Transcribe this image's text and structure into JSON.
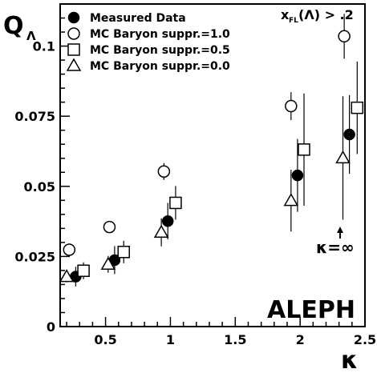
{
  "chart_data": {
    "type": "scatter",
    "title": "",
    "xlabel": "κ",
    "ylabel": "Q",
    "ylabel_sub": "Λ",
    "xlim": [
      0.15,
      2.5
    ],
    "ylim": [
      0,
      0.115
    ],
    "x_ticks": [
      0.5,
      1,
      1.5,
      2,
      2.5
    ],
    "x_tick_labels": [
      "0.5",
      "1",
      "1.5",
      "2",
      "2.5"
    ],
    "y_ticks": [
      0,
      0.025,
      0.05,
      0.075,
      0.1
    ],
    "y_tick_labels": [
      "0",
      "0.025",
      "0.05",
      "0.075",
      "0.1"
    ],
    "cut_label": "x",
    "cut_sub": "FL",
    "cut_rest": "(Λ) > .2",
    "annotation_kappa": "κ=∞",
    "experiment": "ALEPH",
    "legend_position": "top-left",
    "series": [
      {
        "name": "Measured Data",
        "marker": "filled-circle",
        "points": [
          {
            "x": 0.27,
            "y": 0.0178,
            "err": 0.0035
          },
          {
            "x": 0.57,
            "y": 0.0237,
            "err": 0.005
          },
          {
            "x": 0.98,
            "y": 0.0376,
            "err": 0.0065
          },
          {
            "x": 1.98,
            "y": 0.0539,
            "err": 0.013
          },
          {
            "x": 2.38,
            "y": 0.0685,
            "err": 0.014
          }
        ]
      },
      {
        "name": "MC Baryon suppr.=1.0",
        "marker": "open-circle",
        "points": [
          {
            "x": 0.22,
            "y": 0.0274,
            "err": 0
          },
          {
            "x": 0.53,
            "y": 0.0355,
            "err": 0
          },
          {
            "x": 0.95,
            "y": 0.0553,
            "err": 0.003
          },
          {
            "x": 1.93,
            "y": 0.0786,
            "err": 0.005
          },
          {
            "x": 2.34,
            "y": 0.1035,
            "err": 0.008
          }
        ]
      },
      {
        "name": "MC Baryon suppr.=0.5",
        "marker": "open-square",
        "points": [
          {
            "x": 0.33,
            "y": 0.0199,
            "err": 0.003
          },
          {
            "x": 0.64,
            "y": 0.0266,
            "err": 0.004
          },
          {
            "x": 1.04,
            "y": 0.0441,
            "err": 0.006
          },
          {
            "x": 2.03,
            "y": 0.0631,
            "err": 0.02
          },
          {
            "x": 2.44,
            "y": 0.078,
            "err": 0.0165
          }
        ]
      },
      {
        "name": "MC Baryon suppr.=0.0",
        "marker": "open-triangle",
        "points": [
          {
            "x": 0.2,
            "y": 0.0178,
            "err": 0.002
          },
          {
            "x": 0.52,
            "y": 0.0222,
            "err": 0.003
          },
          {
            "x": 0.93,
            "y": 0.0336,
            "err": 0.005
          },
          {
            "x": 1.93,
            "y": 0.0449,
            "err": 0.011
          },
          {
            "x": 2.33,
            "y": 0.0601,
            "err": 0.022
          }
        ]
      }
    ]
  }
}
